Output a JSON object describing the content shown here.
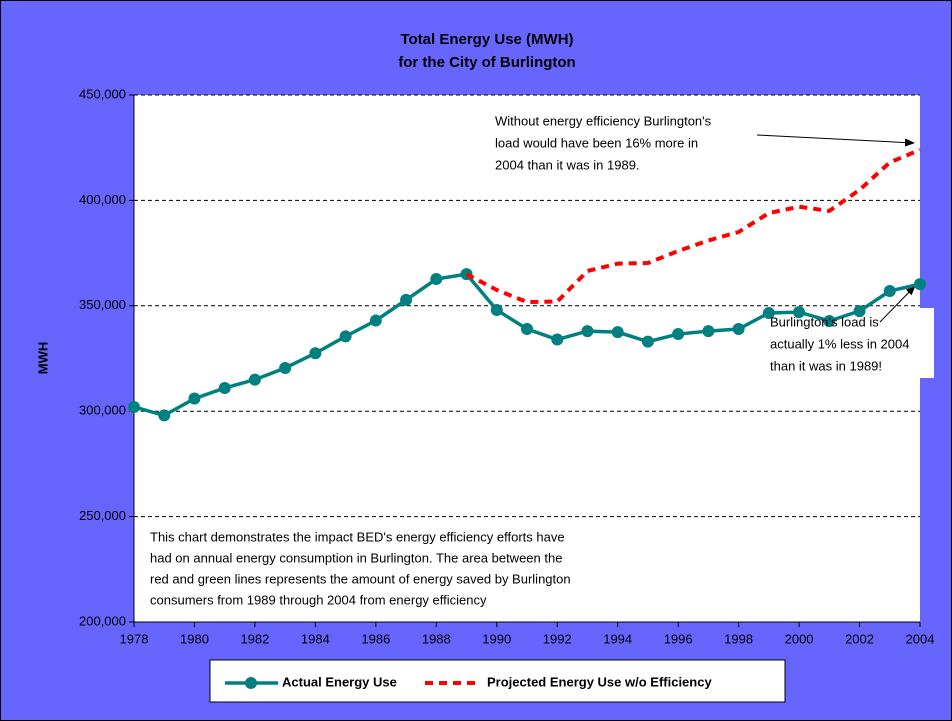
{
  "chart_data": {
    "type": "line",
    "title": [
      "Total Energy Use (MWH)",
      "for the City of Burlington"
    ],
    "y_label": "MWH",
    "x": [
      1978,
      1979,
      1980,
      1981,
      1982,
      1983,
      1984,
      1985,
      1986,
      1987,
      1988,
      1989,
      1990,
      1991,
      1992,
      1993,
      1994,
      1995,
      1996,
      1997,
      1998,
      1999,
      2000,
      2001,
      2002,
      2003,
      2004
    ],
    "xlim": [
      1978,
      2004
    ],
    "xticks": [
      1978,
      1980,
      1982,
      1984,
      1986,
      1988,
      1990,
      1992,
      1994,
      1996,
      1998,
      2000,
      2002,
      2004
    ],
    "ylim": [
      200000,
      450000
    ],
    "yticks": [
      {
        "value": 200000,
        "label": "200,000"
      },
      {
        "value": 250000,
        "label": "250,000"
      },
      {
        "value": 300000,
        "label": "300,000"
      },
      {
        "value": 350000,
        "label": "350,000"
      },
      {
        "value": 400000,
        "label": "400,000"
      },
      {
        "value": 450000,
        "label": "450,000"
      }
    ],
    "grid": true,
    "series": [
      {
        "name": "Actual Energy Use",
        "color": "#008080",
        "style": "solid-markers",
        "values": [
          302000,
          298000,
          306000,
          311000,
          315000,
          320500,
          327500,
          335500,
          343000,
          352800,
          362700,
          365000,
          348000,
          339000,
          334000,
          338000,
          337500,
          333000,
          336600,
          338000,
          339000,
          346600,
          347000,
          342800,
          347500,
          357000,
          360300
        ]
      },
      {
        "name": "Projected Energy Use w/o Efficiency",
        "color": "#ff0000",
        "style": "dashed",
        "values": [
          null,
          null,
          null,
          null,
          null,
          null,
          null,
          null,
          null,
          null,
          null,
          365000,
          357500,
          351800,
          352000,
          366500,
          370000,
          370300,
          376000,
          381000,
          385000,
          394000,
          397000,
          395000,
          405000,
          418000,
          424000
        ]
      }
    ],
    "annotations": [
      {
        "lines": [
          "Without energy efficiency Burlington's",
          "load would have been 16% more in",
          "2004 than it was in 1989."
        ]
      },
      {
        "lines": [
          "Burlington's load is",
          "actually 1%  less in 2004",
          "than it was in 1989!"
        ]
      },
      {
        "lines": [
          "This chart demonstrates the impact BED's energy efficiency efforts have",
          "had on annual energy consumption in Burlington.  The area between the",
          "red and green lines represents the amount of energy saved by Burlington",
          "consumers from 1989 through 2004 from energy efficiency"
        ]
      }
    ]
  }
}
